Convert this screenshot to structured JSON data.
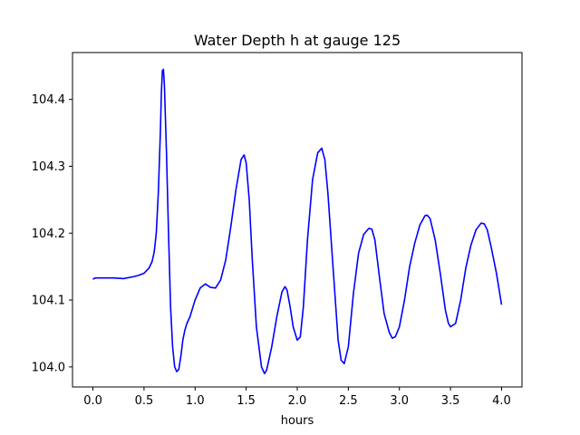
{
  "chart_data": {
    "type": "line",
    "title": "Water Depth h at gauge 125",
    "xlabel": "hours",
    "ylabel": "",
    "xlim": [
      -0.2,
      4.2
    ],
    "ylim": [
      103.97,
      104.47
    ],
    "grid": false,
    "x_ticks": [
      0.0,
      0.5,
      1.0,
      1.5,
      2.0,
      2.5,
      3.0,
      3.5,
      4.0
    ],
    "x_tick_labels": [
      "0.0",
      "0.5",
      "1.0",
      "1.5",
      "2.0",
      "2.5",
      "3.0",
      "3.5",
      "4.0"
    ],
    "y_ticks": [
      104.0,
      104.1,
      104.2,
      104.3,
      104.4
    ],
    "y_tick_labels": [
      "104.0",
      "104.1",
      "104.2",
      "104.3",
      "104.4"
    ],
    "series": [
      {
        "color": "#0000ff",
        "x": [
          0.0,
          0.02,
          0.1,
          0.2,
          0.3,
          0.4,
          0.45,
          0.5,
          0.55,
          0.58,
          0.6,
          0.62,
          0.64,
          0.66,
          0.67,
          0.68,
          0.69,
          0.7,
          0.72,
          0.74,
          0.76,
          0.78,
          0.8,
          0.82,
          0.84,
          0.86,
          0.88,
          0.9,
          0.92,
          0.95,
          1.0,
          1.05,
          1.1,
          1.15,
          1.2,
          1.25,
          1.3,
          1.35,
          1.4,
          1.45,
          1.48,
          1.5,
          1.53,
          1.56,
          1.6,
          1.65,
          1.68,
          1.7,
          1.75,
          1.8,
          1.85,
          1.88,
          1.9,
          1.93,
          1.96,
          2.0,
          2.03,
          2.06,
          2.1,
          2.15,
          2.2,
          2.24,
          2.27,
          2.3,
          2.35,
          2.4,
          2.43,
          2.46,
          2.5,
          2.55,
          2.6,
          2.65,
          2.7,
          2.73,
          2.76,
          2.8,
          2.85,
          2.9,
          2.93,
          2.96,
          3.0,
          3.05,
          3.1,
          3.15,
          3.2,
          3.25,
          3.27,
          3.3,
          3.35,
          3.4,
          3.45,
          3.48,
          3.5,
          3.55,
          3.6,
          3.65,
          3.7,
          3.75,
          3.8,
          3.83,
          3.86,
          3.9,
          3.95,
          4.0
        ],
        "y": [
          104.131,
          104.133,
          104.133,
          104.133,
          104.132,
          104.135,
          104.137,
          104.14,
          104.148,
          104.158,
          104.172,
          104.2,
          104.26,
          104.35,
          104.41,
          104.443,
          104.445,
          104.42,
          104.32,
          104.2,
          104.09,
          104.03,
          104.0,
          103.993,
          103.996,
          104.015,
          104.04,
          104.055,
          104.065,
          104.075,
          104.1,
          104.118,
          104.124,
          104.119,
          104.118,
          104.13,
          104.16,
          104.21,
          104.265,
          104.31,
          104.317,
          104.305,
          104.25,
          104.16,
          104.06,
          104.0,
          103.99,
          103.995,
          104.03,
          104.075,
          104.112,
          104.12,
          104.115,
          104.09,
          104.06,
          104.04,
          104.045,
          104.09,
          104.19,
          104.28,
          104.32,
          104.327,
          104.31,
          104.26,
          104.15,
          104.04,
          104.01,
          104.005,
          104.03,
          104.11,
          104.17,
          104.198,
          104.207,
          104.206,
          104.19,
          104.14,
          104.08,
          104.052,
          104.043,
          104.045,
          104.06,
          104.1,
          104.15,
          104.185,
          104.212,
          104.226,
          104.227,
          104.222,
          104.19,
          104.14,
          104.085,
          104.065,
          104.06,
          104.065,
          104.1,
          104.148,
          104.182,
          104.205,
          104.215,
          104.214,
          104.205,
          104.178,
          104.14,
          104.093
        ]
      }
    ]
  }
}
